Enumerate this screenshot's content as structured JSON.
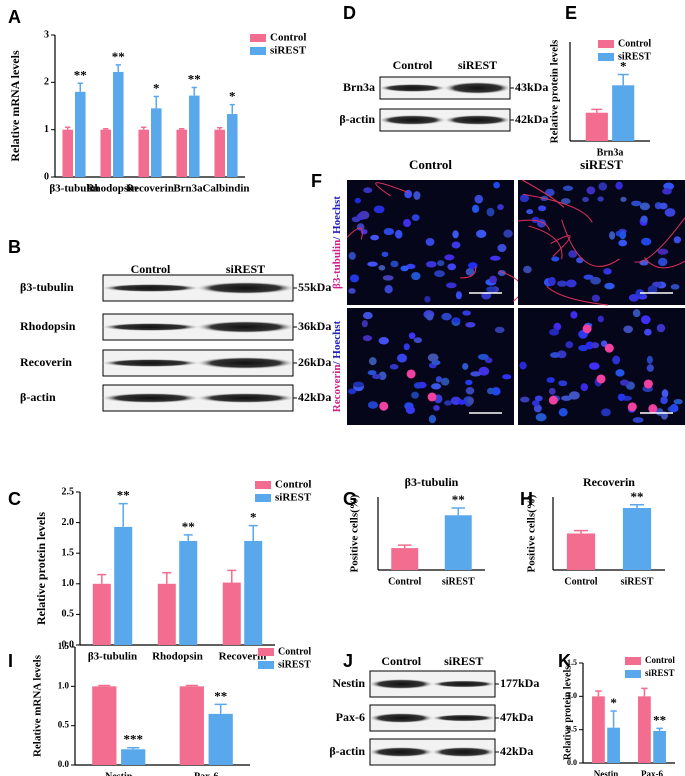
{
  "chart_data": [
    {
      "type": "bar",
      "label": "A",
      "ylabel": "Relative  mRNA levels",
      "legend": true,
      "categories": [
        "β3-tubulin",
        "Rhodopsin",
        "Recoverin",
        "Brn3a",
        "Calbindin"
      ],
      "series": [
        {
          "name": "Control",
          "color": "#f26d8f",
          "values": [
            1.0,
            1.0,
            1.0,
            1.0,
            1.0
          ],
          "errors": [
            0.05,
            0.02,
            0.05,
            0.02,
            0.04
          ]
        },
        {
          "name": "siREST",
          "color": "#5aa8ec",
          "values": [
            1.8,
            2.22,
            1.45,
            1.72,
            1.33
          ],
          "errors": [
            0.18,
            0.15,
            0.25,
            0.17,
            0.2
          ],
          "annotations": [
            "**",
            "**",
            "*",
            "**",
            "*"
          ]
        }
      ],
      "ylim": [
        0,
        3
      ],
      "yticks": [
        0,
        1,
        2,
        3
      ]
    },
    {
      "type": "bar",
      "label": "C",
      "ylabel": "Relative protein levels",
      "legend": true,
      "categories": [
        "β3-tubulin",
        "Rhodopsin",
        "Recoverin"
      ],
      "series": [
        {
          "name": "Control",
          "color": "#f26d8f",
          "values": [
            1.0,
            1.0,
            1.02
          ],
          "errors": [
            0.15,
            0.18,
            0.2
          ]
        },
        {
          "name": "siREST",
          "color": "#5aa8ec",
          "values": [
            1.93,
            1.7,
            1.7
          ],
          "errors": [
            0.38,
            0.1,
            0.25
          ],
          "annotations": [
            "**",
            "**",
            "*"
          ]
        }
      ],
      "ylim": [
        0,
        2.5
      ],
      "yticks": [
        {
          "value": 0,
          "label": "0.0"
        },
        {
          "value": 0.5,
          "label": "0.5"
        },
        {
          "value": 1,
          "label": "1.0"
        },
        {
          "value": 1.5,
          "label": "1.5"
        },
        {
          "value": 2,
          "label": "2.0"
        },
        {
          "value": 2.5,
          "label": "2.5"
        }
      ]
    },
    {
      "type": "bar",
      "label": "E",
      "ylabel": "Relative protein levels",
      "legend": true,
      "categories": [
        "Brn3a"
      ],
      "series": [
        {
          "name": "Control",
          "color": "#f26d8f",
          "values": [
            1.0
          ],
          "errors": [
            0.12
          ]
        },
        {
          "name": "siREST",
          "color": "#5aa8ec",
          "values": [
            1.97
          ],
          "errors": [
            0.38
          ],
          "annotations": [
            "*"
          ]
        }
      ],
      "ylim": [
        0,
        3.5
      ]
    },
    {
      "type": "bar",
      "label": "G",
      "title": "β3-tubulin",
      "ylabel": "Positive cells(%)",
      "legend": false,
      "categories": [
        "Control",
        "siREST"
      ],
      "series": [
        {
          "colors": [
            "#f26d8f",
            "#5aa8ec"
          ],
          "values": [
            9,
            22.5
          ],
          "errors": [
            1.2,
            3
          ],
          "annotations": [
            null,
            "**"
          ]
        }
      ],
      "ylim": [
        0,
        30
      ]
    },
    {
      "type": "bar",
      "label": "H",
      "title": "Recoverin",
      "ylabel": "Positive cells(%)",
      "legend": false,
      "categories": [
        "Control",
        "siREST"
      ],
      "series": [
        {
          "colors": [
            "#f26d8f",
            "#5aa8ec"
          ],
          "values": [
            15,
            25.5
          ],
          "errors": [
            1.2,
            1.3
          ],
          "annotations": [
            null,
            "**"
          ]
        }
      ],
      "ylim": [
        0,
        30
      ]
    },
    {
      "type": "bar",
      "label": "I",
      "ylabel": "Relative  mRNA levels",
      "legend": true,
      "categories": [
        "Nestin",
        "Pax-6"
      ],
      "series": [
        {
          "name": "Control",
          "color": "#f26d8f",
          "values": [
            1.0,
            1.0
          ],
          "errors": [
            0.01,
            0.01
          ]
        },
        {
          "name": "siREST",
          "color": "#5aa8ec",
          "values": [
            0.2,
            0.65
          ],
          "errors": [
            0.02,
            0.12
          ],
          "annotations": [
            "***",
            "**"
          ]
        }
      ],
      "ylim": [
        0,
        1.5
      ],
      "yticks": [
        {
          "value": 0,
          "label": "0.0"
        },
        {
          "value": 0.5,
          "label": "0.5"
        },
        {
          "value": 1,
          "label": "1.0"
        },
        {
          "value": 1.5,
          "label": "1.5"
        }
      ]
    },
    {
      "type": "bar",
      "label": "K",
      "ylabel": "Relative protein levels",
      "legend": true,
      "categories": [
        "Nestin",
        "Pax-6"
      ],
      "series": [
        {
          "name": "Control",
          "color": "#f26d8f",
          "values": [
            1.0,
            1.0
          ],
          "errors": [
            0.08,
            0.12
          ]
        },
        {
          "name": "siREST",
          "color": "#5aa8ec",
          "values": [
            0.53,
            0.48
          ],
          "errors": [
            0.25,
            0.04
          ],
          "annotations": [
            "*",
            "**"
          ]
        }
      ],
      "ylim": [
        0,
        1.5
      ],
      "yticks": [
        {
          "value": 0,
          "label": "0.0"
        },
        {
          "value": 0.5,
          "label": "0.5"
        },
        {
          "value": 1,
          "label": "1.0"
        },
        {
          "value": 1.5,
          "label": "1.5"
        }
      ]
    }
  ],
  "blots": [
    {
      "label": "B",
      "columns": [
        "Control",
        "siREST"
      ],
      "rows": [
        {
          "name": "β3-tubulin",
          "size": "55kDa"
        },
        {
          "name": "Rhodopsin",
          "size": "36kDa"
        },
        {
          "name": "Recoverin",
          "size": "26kDa"
        },
        {
          "name": "β-actin",
          "size": "42kDa"
        }
      ]
    },
    {
      "label": "D",
      "columns": [
        "Control",
        "siREST"
      ],
      "rows": [
        {
          "name": "Brn3a",
          "size": "43kDa"
        },
        {
          "name": "β-actin",
          "size": "42kDa"
        }
      ]
    },
    {
      "label": "J",
      "columns": [
        "Control",
        "siREST"
      ],
      "rows": [
        {
          "name": "Nestin",
          "size": "177kDa"
        },
        {
          "name": "Pax-6",
          "size": "47kDa"
        },
        {
          "name": "β-actin",
          "size": "42kDa"
        }
      ]
    }
  ],
  "micrograph": {
    "label": "F",
    "columns": [
      "Control",
      "siREST"
    ],
    "rows": [
      {
        "stain": "β3-tubulin",
        "counterstain": "/ Hoechst"
      },
      {
        "stain": "Recoverin",
        "counterstain": "/ Hoechst"
      }
    ]
  }
}
